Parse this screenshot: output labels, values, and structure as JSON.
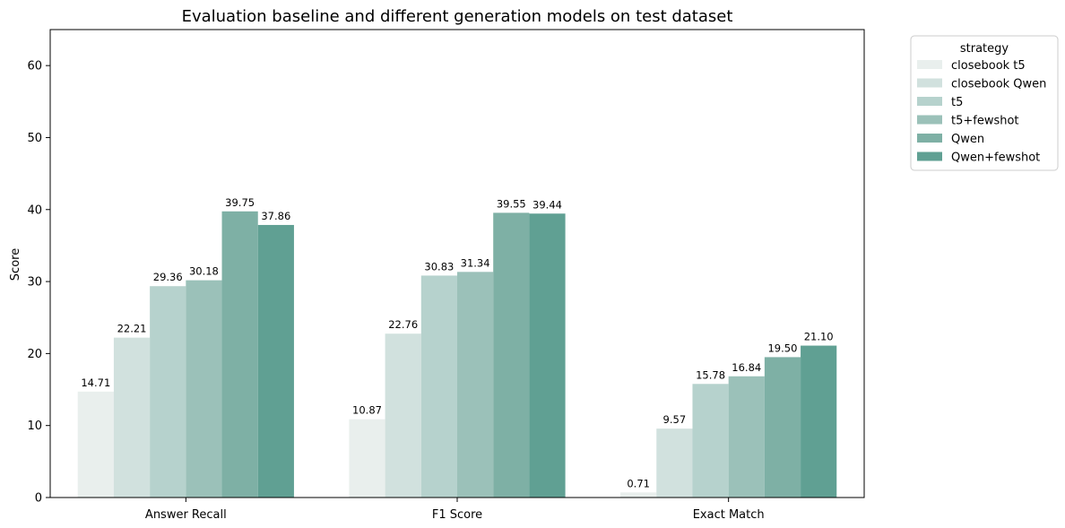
{
  "chart_data": {
    "type": "bar",
    "title": "Evaluation baseline and different generation models on test dataset",
    "xlabel": "",
    "ylabel": "Score",
    "ylim": [
      0,
      65
    ],
    "yticks": [
      0,
      10,
      20,
      30,
      40,
      50,
      60
    ],
    "grid": false,
    "legend_position": "outside-top-right",
    "legend_title": "strategy",
    "categories": [
      "Answer Recall",
      "F1 Score",
      "Exact Match"
    ],
    "series": [
      {
        "name": "closebook t5",
        "color": "#e9efed",
        "values": [
          14.71,
          10.87,
          0.71
        ]
      },
      {
        "name": "closebook Qwen",
        "color": "#d1e1de",
        "values": [
          22.21,
          22.76,
          9.57
        ]
      },
      {
        "name": "t5",
        "color": "#b6d2cd",
        "values": [
          29.36,
          30.83,
          15.78
        ]
      },
      {
        "name": "t5+fewshot",
        "color": "#9bc1b9",
        "values": [
          30.18,
          31.34,
          16.84
        ]
      },
      {
        "name": "Qwen",
        "color": "#7eb0a5",
        "values": [
          39.75,
          39.55,
          19.5
        ]
      },
      {
        "name": "Qwen+fewshot",
        "color": "#60a093",
        "values": [
          37.86,
          39.44,
          21.1
        ]
      }
    ],
    "bar_labels": [
      [
        "14.71",
        "10.87",
        "0.71"
      ],
      [
        "22.21",
        "22.76",
        "9.57"
      ],
      [
        "29.36",
        "30.83",
        "15.78"
      ],
      [
        "30.18",
        "31.34",
        "16.84"
      ],
      [
        "39.75",
        "39.55",
        "19.50"
      ],
      [
        "37.86",
        "39.44",
        "21.10"
      ]
    ]
  }
}
